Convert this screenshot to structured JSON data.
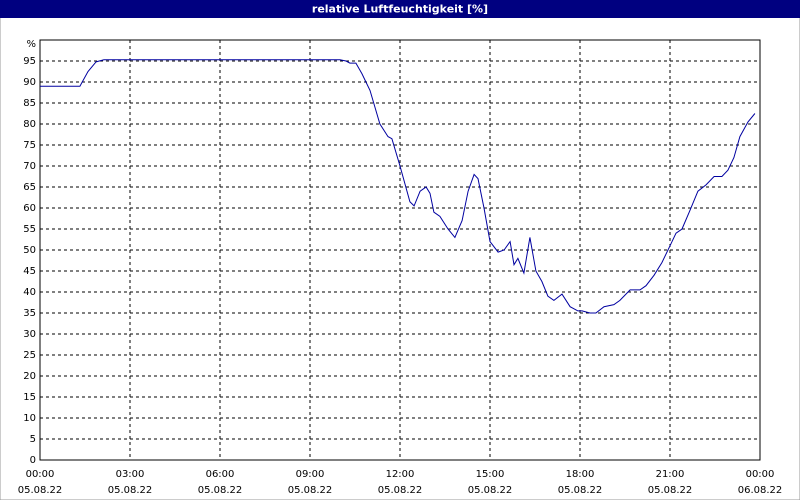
{
  "chart_data": {
    "type": "line",
    "title": "relative Luftfeuchtigkeit [%]",
    "y_unit": "%",
    "x": [
      0,
      1.33,
      1.6,
      1.87,
      2.13,
      10,
      10.2,
      10.33,
      10.53,
      10.73,
      11,
      11.33,
      11.6,
      11.73,
      12,
      12.33,
      12.47,
      12.67,
      12.87,
      13,
      13.13,
      13.33,
      13.6,
      13.83,
      14.07,
      14.27,
      14.47,
      14.6,
      14.8,
      15,
      15.27,
      15.47,
      15.67,
      15.8,
      15.93,
      16.13,
      16.33,
      16.53,
      16.73,
      16.93,
      17.13,
      17.4,
      17.67,
      17.93,
      18.07,
      18.33,
      18.53,
      18.8,
      19.13,
      19.33,
      19.67,
      20,
      20.2,
      20.47,
      20.73,
      21,
      21.2,
      21.4,
      21.67,
      21.93,
      22.2,
      22.47,
      22.73,
      22.93,
      23.13,
      23.33,
      23.6,
      23.83
    ],
    "series": [
      {
        "name": "relative Luftfeuchtigkeit",
        "color": "#0000a0",
        "values": [
          89,
          89,
          92.5,
          94.8,
          95.3,
          95.3,
          95,
          94.5,
          94.5,
          92,
          88,
          80,
          77,
          76.5,
          70,
          61.5,
          60.5,
          64,
          65,
          63.5,
          59,
          58,
          55,
          53,
          57,
          64,
          68,
          67,
          60,
          52,
          49.5,
          50,
          52,
          46.5,
          48,
          44.5,
          53,
          45,
          42.5,
          39,
          38,
          39.5,
          36.5,
          35.5,
          35.5,
          35,
          35,
          36.5,
          37,
          38,
          40.5,
          40.5,
          41.5,
          44,
          47,
          51,
          54,
          55,
          59.5,
          64,
          65.5,
          67.5,
          67.5,
          69,
          72,
          77,
          80.5,
          82.5
        ]
      }
    ],
    "xlim": [
      0,
      24
    ],
    "ylim": [
      0,
      100
    ],
    "xticks": [
      {
        "value": 0,
        "label": "00:00",
        "date": "05.08.22"
      },
      {
        "value": 3,
        "label": "03:00",
        "date": "05.08.22"
      },
      {
        "value": 6,
        "label": "06:00",
        "date": "05.08.22"
      },
      {
        "value": 9,
        "label": "09:00",
        "date": "05.08.22"
      },
      {
        "value": 12,
        "label": "12:00",
        "date": "05.08.22"
      },
      {
        "value": 15,
        "label": "15:00",
        "date": "05.08.22"
      },
      {
        "value": 18,
        "label": "18:00",
        "date": "05.08.22"
      },
      {
        "value": 21,
        "label": "21:00",
        "date": "05.08.22"
      },
      {
        "value": 24,
        "label": "00:00",
        "date": "06.08.22"
      }
    ],
    "yticks": [
      0,
      5,
      10,
      15,
      20,
      25,
      30,
      35,
      40,
      45,
      50,
      55,
      60,
      65,
      70,
      75,
      80,
      85,
      90,
      95
    ],
    "grid": true
  }
}
